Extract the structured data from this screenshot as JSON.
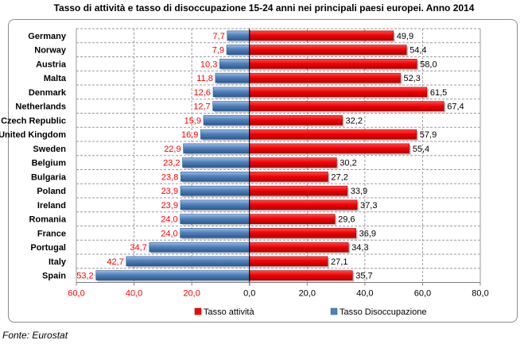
{
  "chart_data": {
    "type": "bar",
    "orientation": "horizontal",
    "title": "Tasso di attività e tasso di disoccupazione 15-24 anni nei principali paesi europei. Anno 2014",
    "categories": [
      "Germany",
      "Norway",
      "Austria",
      "Malta",
      "Denmark",
      "Netherlands",
      "Czech Republic",
      "United Kingdom",
      "Sweden",
      "Belgium",
      "Bulgaria",
      "Poland",
      "Ireland",
      "Romania",
      "France",
      "Portugal",
      "Italy",
      "Spain"
    ],
    "series": [
      {
        "name": "Tasso attività",
        "color": "#ff0000",
        "label_color": "#000000",
        "values": [
          49.9,
          54.4,
          58.0,
          52.3,
          61.5,
          67.4,
          32.2,
          57.9,
          55.4,
          30.2,
          27.2,
          33.9,
          37.3,
          29.6,
          36.9,
          34.3,
          27.1,
          35.7
        ],
        "labels": [
          "49,9",
          "54,4",
          "58,0",
          "52,3",
          "61,5",
          "67,4",
          "32,2",
          "57,9",
          "55,4",
          "30,2",
          "27,2",
          "33,9",
          "37,3",
          "29,6",
          "36,9",
          "34,3",
          "27,1",
          "35,7"
        ]
      },
      {
        "name": "Tasso Disoccupazione",
        "color": "#4f81bd",
        "label_color": "#ff0000",
        "values": [
          7.7,
          7.9,
          10.3,
          11.8,
          12.6,
          12.7,
          15.9,
          16.9,
          22.9,
          23.2,
          23.8,
          23.9,
          23.9,
          24.0,
          24.0,
          34.7,
          42.7,
          53.2
        ],
        "labels": [
          "7,7",
          "7,9",
          "10,3",
          "11,8",
          "12,6",
          "12,7",
          "15,9",
          "16,9",
          "22,9",
          "23,2",
          "23,8",
          "23,9",
          "23,9",
          "24,0",
          "24,0",
          "34,7",
          "42,7",
          "53,2"
        ]
      }
    ],
    "xlim": [
      -60,
      80
    ],
    "xticks": [
      -60,
      -40,
      -20,
      0,
      20,
      40,
      60,
      80
    ],
    "xtick_labels": [
      "60,0",
      "40,0",
      "20,0",
      "0,0",
      "20,0",
      "40,0",
      "60,0",
      "80,0"
    ],
    "legend_position": "bottom",
    "grid": true
  },
  "source": "Fonte: Eurostat"
}
